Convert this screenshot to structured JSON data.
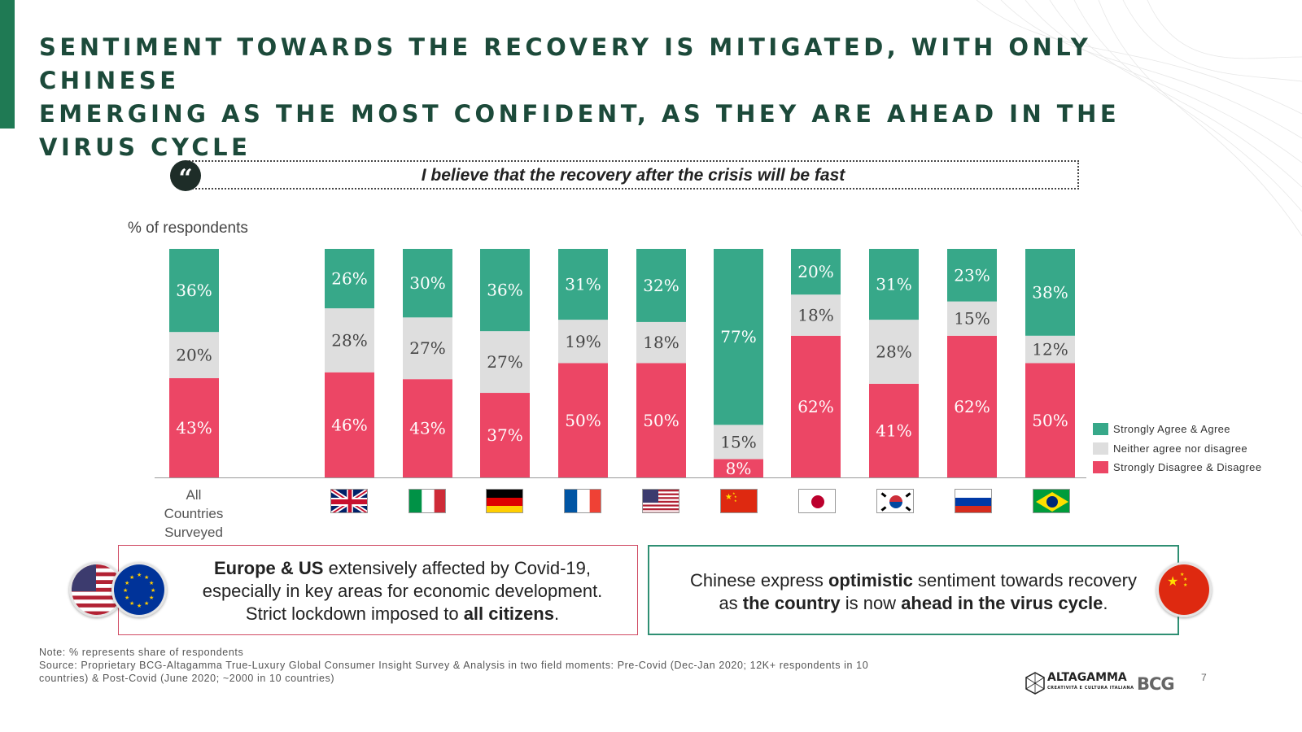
{
  "title_line1": "SENTIMENT TOWARDS THE RECOVERY IS MITIGATED, WITH ONLY CHINESE",
  "title_line2": "EMERGING AS THE MOST CONFIDENT, AS THEY ARE AHEAD IN THE VIRUS CYCLE",
  "quote": "I believe that the recovery after the crisis will be fast",
  "colors": {
    "accent": "#1f7a54",
    "agree": "#37a889",
    "neither": "#dedede",
    "disagree": "#ec4665",
    "title": "#1c4a3a"
  },
  "chart_data": {
    "type": "bar",
    "stacked": true,
    "ylabel": "% of respondents",
    "ylim": [
      0,
      100
    ],
    "grid": false,
    "legend_position": "right",
    "categories": [
      "All Countries Surveyed",
      "UK",
      "Italy",
      "Germany",
      "France",
      "US",
      "China",
      "Japan",
      "South Korea",
      "Russia",
      "Brazil"
    ],
    "category_icons": [
      "",
      "uk-flag",
      "italy-flag",
      "germany-flag",
      "france-flag",
      "us-flag",
      "china-flag",
      "japan-flag",
      "south-korea-flag",
      "russia-flag",
      "brazil-flag"
    ],
    "series": [
      {
        "name": "Strongly Disagree & Disagree",
        "values": [
          43,
          46,
          43,
          37,
          50,
          50,
          8,
          62,
          41,
          62,
          50
        ],
        "labels": [
          "43%",
          "46%",
          "43%",
          "37%",
          "50%",
          "50%",
          "8%",
          "62%",
          "41%",
          "62%",
          "50%"
        ]
      },
      {
        "name": "Neither agree nor disagree",
        "values": [
          20,
          28,
          27,
          27,
          19,
          18,
          15,
          18,
          28,
          15,
          12
        ],
        "labels": [
          "20%",
          "28%",
          "27%",
          "27%",
          "19%",
          "18%",
          "15%",
          "18%",
          "28%",
          "15%",
          "12%"
        ]
      },
      {
        "name": "Strongly Agree & Agree",
        "values": [
          36,
          26,
          30,
          36,
          31,
          32,
          77,
          20,
          31,
          23,
          38
        ],
        "labels": [
          "36%",
          "26%",
          "30%",
          "36%",
          "31%",
          "32%",
          "77%",
          "20%",
          "31%",
          "23%",
          "38%"
        ]
      }
    ]
  },
  "xlabel_all": [
    "All",
    "Countries",
    "Surveyed"
  ],
  "legend": {
    "agree": "Strongly Agree & Agree",
    "neither": "Neither agree nor disagree",
    "disagree": "Strongly Disagree & Disagree"
  },
  "callout_left": {
    "bold1": "Europe & US",
    "text1": " extensively affected by Covid-19,",
    "text2": "especially in key areas for economic development.",
    "text3": "Strict lockdown imposed to ",
    "bold2": "all citizens",
    "text4": "."
  },
  "callout_right": {
    "text1": "Chinese express ",
    "bold1": "optimistic",
    "text2": " sentiment towards recovery",
    "text3": "as ",
    "bold2": "the country",
    "text4": " is now ",
    "bold3": "ahead in the virus cycle",
    "text5": "."
  },
  "note": "Note: % represents share of respondents",
  "source1": "Source: Proprietary BCG-Altagamma True-Luxury Global Consumer Insight Survey & Analysis in two field moments: Pre-Covid (Dec-Jan 2020; 12K+ respondents in 10",
  "source2": "countries) & Post-Covid (June 2020; ~2000 in 10 countries)",
  "page_number": "7",
  "logo_altagamma": "ALTAGAMMA",
  "logo_altagamma_sub": "CREATIVITÀ E CULTURA ITALIANA",
  "logo_bcg": "BCG"
}
